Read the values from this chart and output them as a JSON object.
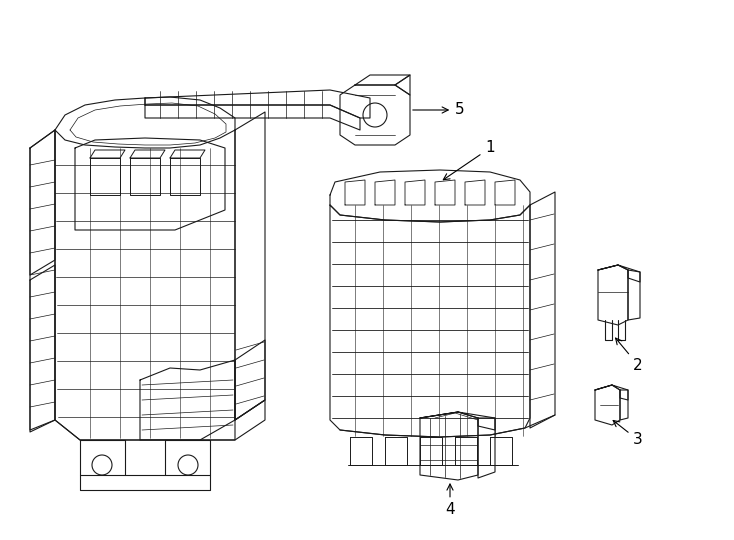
{
  "background_color": "#ffffff",
  "line_color": "#1a1a1a",
  "line_width": 0.8,
  "fig_width": 7.34,
  "fig_height": 5.4
}
